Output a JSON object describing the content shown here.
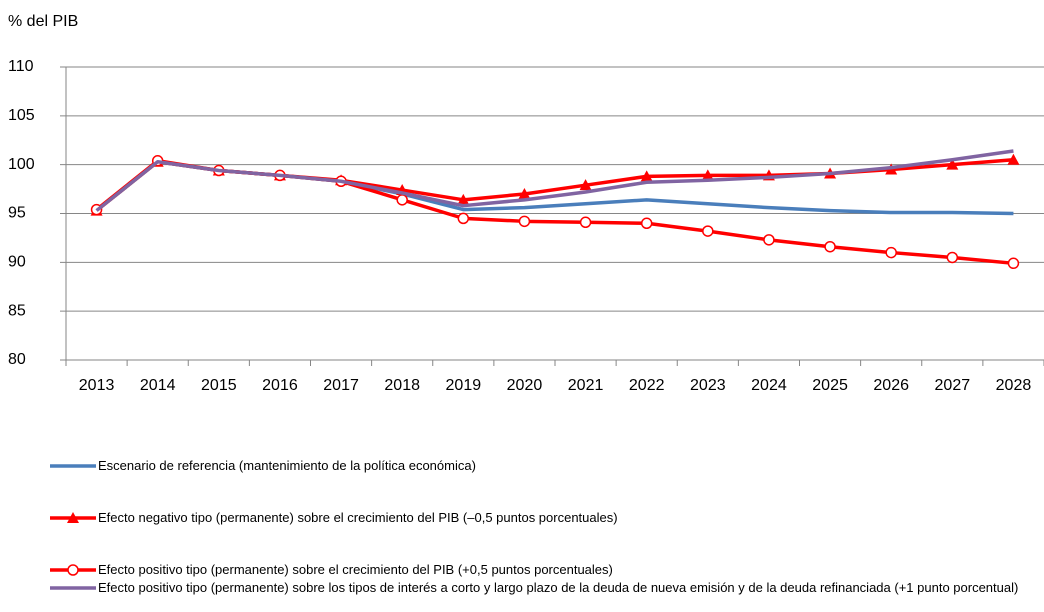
{
  "chart_data": {
    "type": "line",
    "y_label": "% del PIB",
    "categories": [
      "2013",
      "2014",
      "2015",
      "2016",
      "2017",
      "2018",
      "2019",
      "2020",
      "2021",
      "2022",
      "2023",
      "2024",
      "2025",
      "2026",
      "2027",
      "2028"
    ],
    "ylim": [
      80,
      110
    ],
    "yticks": [
      80,
      85,
      90,
      95,
      100,
      105,
      110
    ],
    "grid": true,
    "series": [
      {
        "name": "Escenario de referencia (mantenimiento de la política económica)",
        "color": "#4a7ebb",
        "marker": "none",
        "values": [
          95.3,
          100.3,
          99.4,
          98.9,
          98.3,
          97.0,
          95.4,
          95.6,
          96.0,
          96.4,
          96.0,
          95.6,
          95.3,
          95.1,
          95.1,
          95.0
        ]
      },
      {
        "name": "Efecto negativo tipo (permanente) sobre el crecimiento del PIB (–0,5 puntos porcentuales)",
        "color": "#ff0000",
        "marker": "triangle",
        "values": [
          95.3,
          100.3,
          99.4,
          98.9,
          98.4,
          97.4,
          96.4,
          97.0,
          97.9,
          98.8,
          98.9,
          98.9,
          99.1,
          99.5,
          100.0,
          100.5
        ]
      },
      {
        "name": "Efecto positivo tipo (permanente) sobre el crecimiento del PIB (+0,5 puntos porcentuales)",
        "color": "#ff0000",
        "marker": "circle",
        "values": [
          95.4,
          100.4,
          99.4,
          98.9,
          98.3,
          96.4,
          94.5,
          94.2,
          94.1,
          94.0,
          93.2,
          92.3,
          91.6,
          91.0,
          90.5,
          89.9
        ]
      },
      {
        "name": "Efecto positivo tipo (permanente) sobre los tipos de interés a corto y largo plazo de la deuda de nueva emisión y de la deuda refinanciada (+1 punto porcentual)",
        "color": "#8064a2",
        "marker": "none",
        "values": [
          95.3,
          100.3,
          99.4,
          98.9,
          98.3,
          97.1,
          95.8,
          96.4,
          97.2,
          98.2,
          98.4,
          98.7,
          99.1,
          99.7,
          100.5,
          101.4
        ]
      }
    ]
  }
}
